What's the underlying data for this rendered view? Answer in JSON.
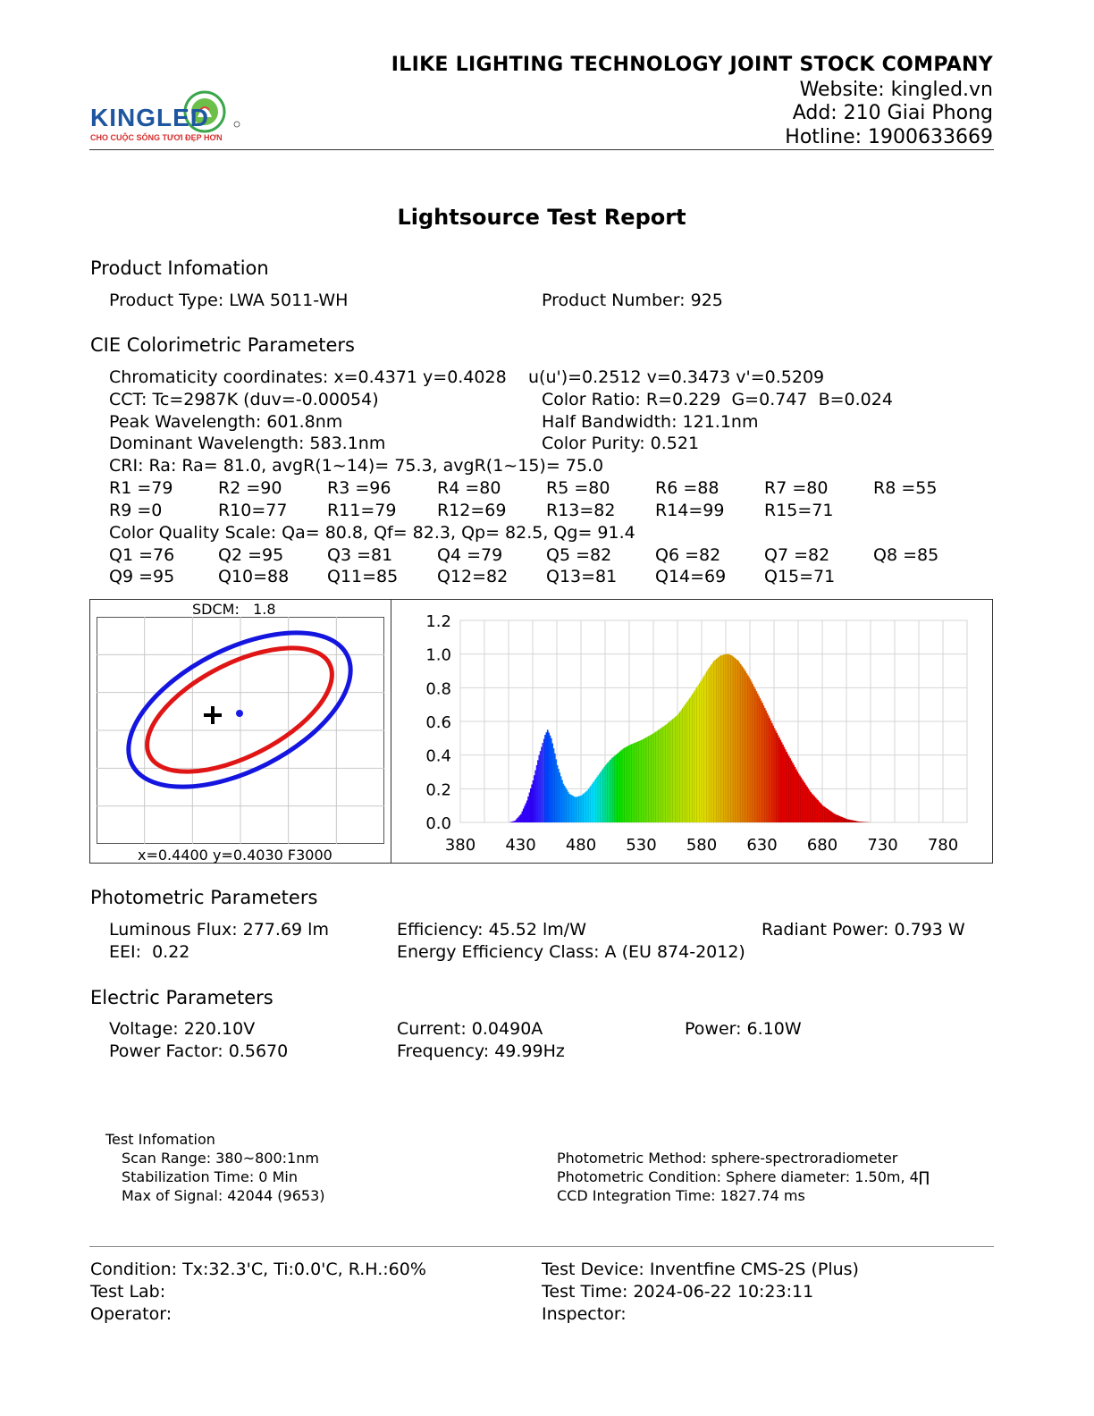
{
  "header": {
    "logo_text": "KINGLED",
    "logo_tagline": "CHO CUỘC SỐNG TƯƠI ĐẸP HƠN",
    "company": "ILIKE LIGHTING TECHNOLOGY JOINT STOCK COMPANY",
    "website": "Website: kingled.vn",
    "address": "Add: 210 Giai Phong",
    "hotline": "Hotline: 1900633669"
  },
  "report_title": "Lightsource Test Report",
  "product": {
    "heading": "Product Infomation",
    "type": "Product Type: LWA 5011-WH",
    "number": "Product Number: 925"
  },
  "cie": {
    "heading": "CIE Colorimetric Parameters",
    "chromaticity": "Chromaticity coordinates: x=0.4371 y=0.4028",
    "uv": "u(u')=0.2512 v=0.3473 v'=0.5209",
    "cct": "CCT: Tc=2987K (duv=-0.00054)",
    "color_ratio": "Color Ratio: R=0.229  G=0.747  B=0.024",
    "peak": "Peak Wavelength: 601.8nm",
    "half_bandwidth": "Half Bandwidth: 121.1nm",
    "dominant": "Dominant Wavelength: 583.1nm",
    "purity": "Color Purity: 0.521",
    "cri": "CRI: Ra: Ra= 81.0, avgR(1~14)= 75.3, avgR(1~15)= 75.0",
    "r_row1": [
      "R1 =79",
      "R2 =90",
      "R3 =96",
      "R4 =80",
      "R5 =80",
      "R6 =88",
      "R7 =80",
      "R8 =55"
    ],
    "r_row2": [
      "R9 =0",
      "R10=77",
      "R11=79",
      "R12=69",
      "R13=82",
      "R14=99",
      "R15=71"
    ],
    "cqs": "Color Quality Scale: Qa= 80.8, Qf= 82.3, Qp= 82.5, Qg= 91.4",
    "q_row1": [
      "Q1 =76",
      "Q2 =95",
      "Q3 =81",
      "Q4 =79",
      "Q5 =82",
      "Q6 =82",
      "Q7 =82",
      "Q8 =85"
    ],
    "q_row2": [
      "Q9 =95",
      "Q10=88",
      "Q11=85",
      "Q12=82",
      "Q13=81",
      "Q14=69",
      "Q15=71"
    ]
  },
  "sdcm": {
    "label": "SDCM:   1.8",
    "footer": "x=0.4400 y=0.4030 F3000",
    "colors": {
      "outer": "#1515e0",
      "inner": "#e01515",
      "point": "#1a1ae6"
    }
  },
  "chart_data": {
    "type": "area",
    "title": "",
    "xlabel": "",
    "ylabel": "",
    "xlim": [
      380,
      800
    ],
    "ylim": [
      0,
      1.2
    ],
    "x_ticks": [
      "380",
      "430",
      "480",
      "530",
      "580",
      "630",
      "680",
      "730",
      "780"
    ],
    "y_ticks": [
      "1.2",
      "1.0",
      "0.8",
      "0.6",
      "0.4",
      "0.2",
      "0.0"
    ],
    "grid": true,
    "x": [
      420,
      425,
      430,
      435,
      440,
      445,
      450,
      452,
      455,
      458,
      460,
      465,
      470,
      475,
      480,
      485,
      490,
      495,
      500,
      505,
      510,
      515,
      520,
      530,
      540,
      550,
      560,
      570,
      580,
      585,
      590,
      595,
      600,
      602,
      605,
      610,
      615,
      620,
      625,
      630,
      640,
      650,
      660,
      670,
      680,
      690,
      700,
      710,
      720
    ],
    "values": [
      0.0,
      0.01,
      0.05,
      0.13,
      0.25,
      0.4,
      0.52,
      0.55,
      0.5,
      0.41,
      0.34,
      0.23,
      0.17,
      0.15,
      0.16,
      0.19,
      0.24,
      0.29,
      0.34,
      0.38,
      0.41,
      0.44,
      0.46,
      0.49,
      0.53,
      0.58,
      0.64,
      0.74,
      0.85,
      0.91,
      0.96,
      0.99,
      1.0,
      1.0,
      0.99,
      0.96,
      0.91,
      0.85,
      0.78,
      0.71,
      0.56,
      0.42,
      0.29,
      0.18,
      0.1,
      0.05,
      0.02,
      0.005,
      0.0
    ]
  },
  "photometric": {
    "heading": "Photometric Parameters",
    "flux": "Luminous Flux: 277.69 lm",
    "efficiency": "Efficiency: 45.52 lm/W",
    "radiant": "Radiant Power: 0.793 W",
    "eei": "EEI:  0.22",
    "energy_class": "Energy Efficiency Class: A (EU 874-2012)"
  },
  "electric": {
    "heading": "Electric Parameters",
    "voltage": "Voltage: 220.10V",
    "current": "Current: 0.0490A",
    "power": "Power: 6.10W",
    "pf": "Power Factor: 0.5670",
    "frequency": "Frequency: 49.99Hz"
  },
  "test_info": {
    "heading": "Test Infomation",
    "scan_range": "Scan Range: 380~800:1nm",
    "stabilization": "Stabilization Time: 0 Min",
    "max_signal": "Max of Signal: 42044 (9653)",
    "method": "Photometric Method: sphere-spectroradiometer",
    "condition": "Photometric Condition: Sphere diameter: 1.50m, 4∏",
    "ccd": "CCD Integration Time: 1827.74 ms"
  },
  "footer": {
    "condition": "Condition: Tx:32.3'C, Ti:0.0'C, R.H.:60%",
    "device": "Test Device: Inventfine CMS-2S (Plus)",
    "lab": "Test Lab:",
    "time": "Test Time: 2024-06-22 10:23:11",
    "operator": "Operator:",
    "inspector": "Inspector:"
  }
}
